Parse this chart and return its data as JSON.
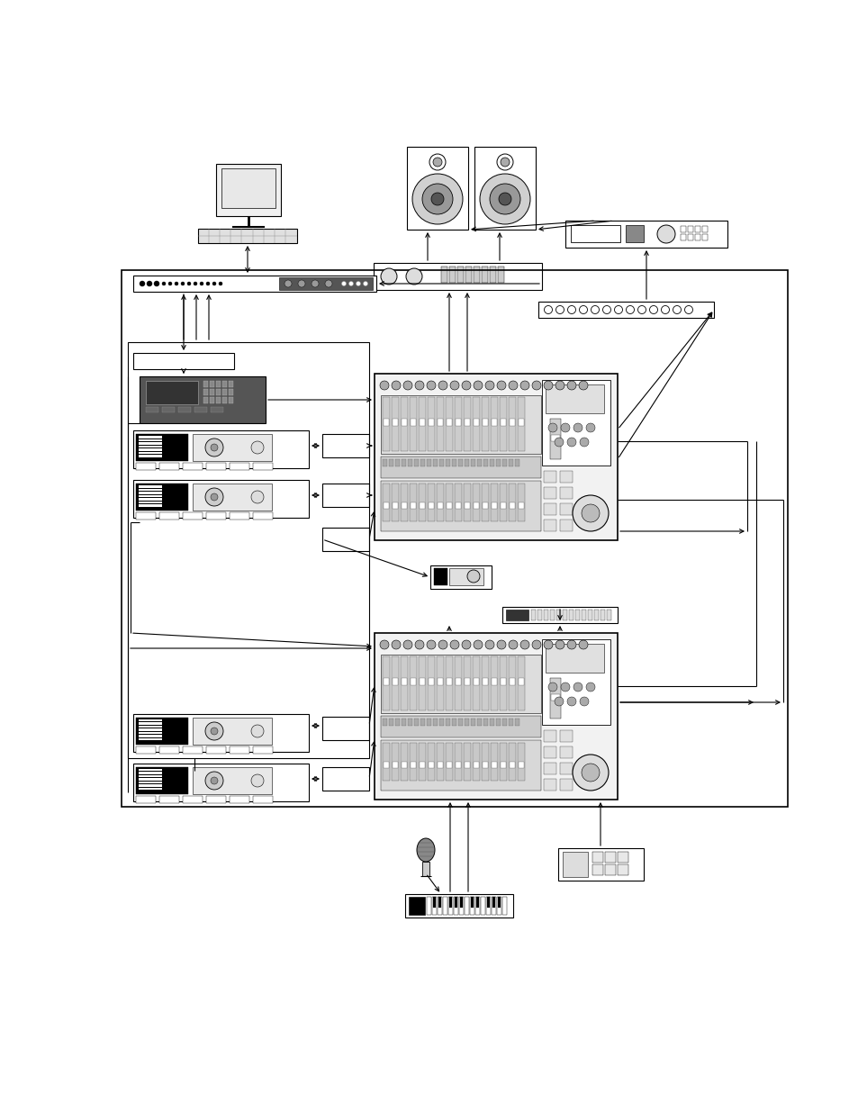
{
  "bg_color": "#ffffff",
  "fg_color": "#000000",
  "fig_width": 9.54,
  "fig_height": 12.35,
  "dpi": 100
}
